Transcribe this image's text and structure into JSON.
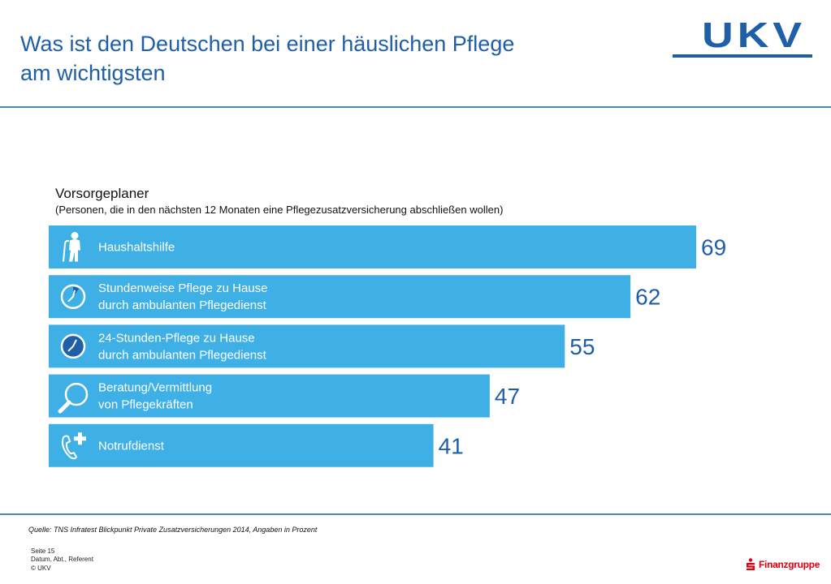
{
  "header": {
    "title_line1": "Was ist den Deutschen bei einer häuslichen Pflege",
    "title_line2": "am wichtigsten",
    "logo": "UKV"
  },
  "colors": {
    "bar": "#3eb0e5",
    "brand_blue": "#1f5fa8",
    "rule": "#4a86c5",
    "sparkasse_red": "#e3000f"
  },
  "chart_data": {
    "type": "bar",
    "orientation": "horizontal",
    "title": "Vorsorgeplaner",
    "subtitle": "(Personen, die in den nächsten 12 Monaten eine Pflegezusatzversicherung abschließen wollen)",
    "unit": "Prozent",
    "xlim": [
      0,
      69
    ],
    "categories": [
      [
        "Haushaltshilfe"
      ],
      [
        "Stundenweise Pflege zu Hause",
        "durch ambulanten Pflegedienst"
      ],
      [
        "24-Stunden-Pflege zu Hause",
        "durch ambulanten Pflegedienst"
      ],
      [
        "Beratung/Vermittlung",
        "von Pflegekräften"
      ],
      [
        "Notrufdienst"
      ]
    ],
    "values": [
      69,
      62,
      55,
      47,
      41
    ],
    "icons": [
      "elderly-person-icon",
      "clock-icon",
      "clock-filled-icon",
      "magnifier-icon",
      "phone-plus-icon"
    ]
  },
  "source": "Quelle: TNS Infratest Blickpunkt Private Zusatzversicherungen 2014, Angaben in Prozent",
  "footer": {
    "page": "Seite 15",
    "meta": "Datum, Abt., Referent",
    "copyright": "© UKV",
    "brand": "Finanzgruppe"
  }
}
